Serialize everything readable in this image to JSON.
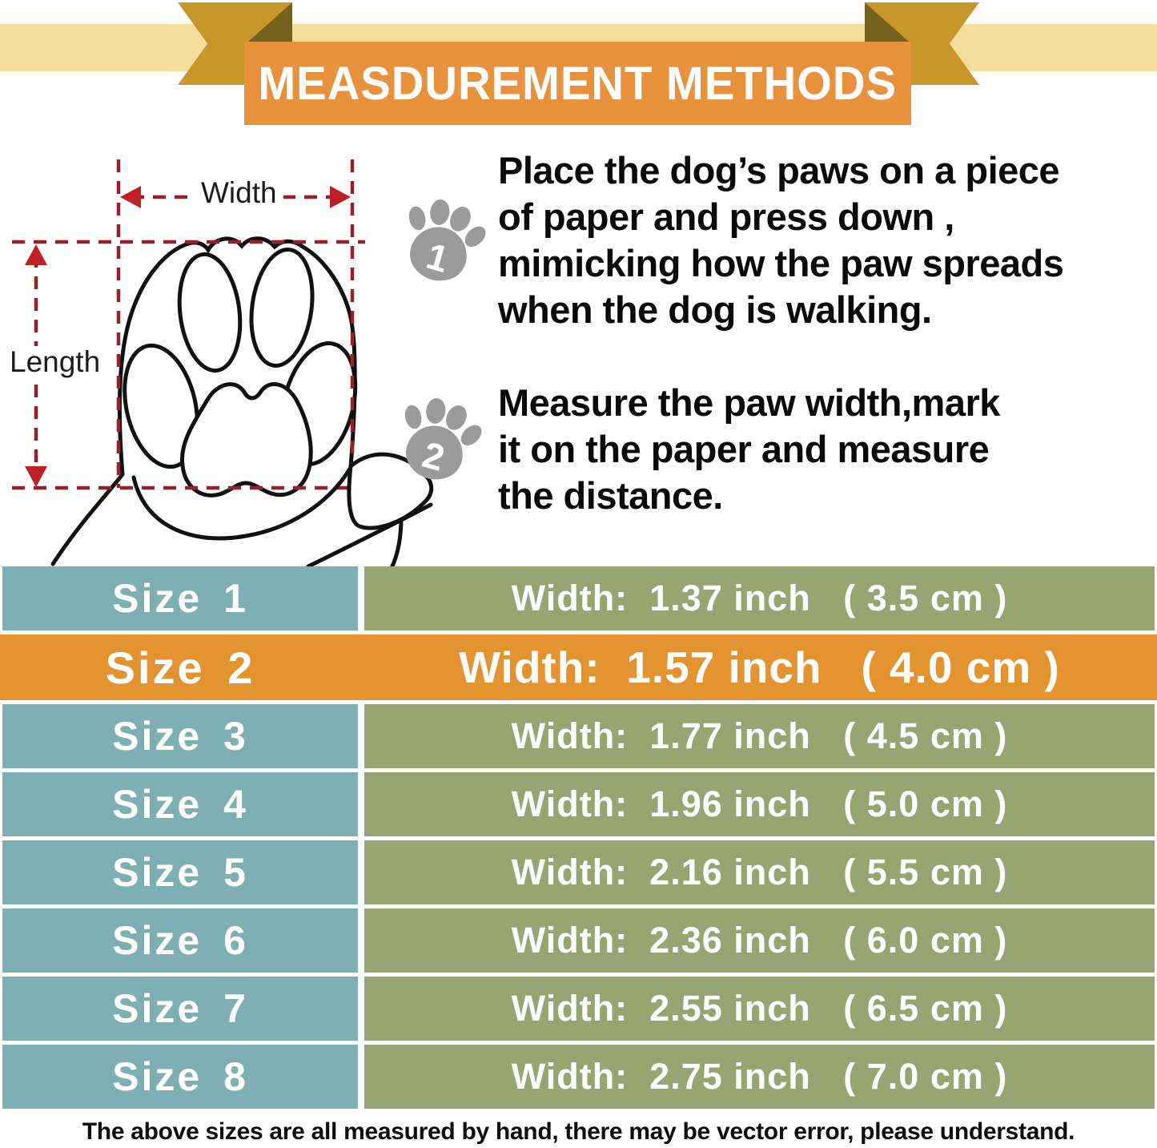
{
  "header": {
    "title": "MEASDUREMENT METHODS"
  },
  "diagram": {
    "width_label": "Width",
    "length_label": "Length"
  },
  "steps": [
    {
      "number": "1",
      "text": "Place the dog’s paws on a piece\nof paper and press down ,\nmimicking how the paw spreads\nwhen the dog is walking."
    },
    {
      "number": "2",
      "text": "Measure the paw width,mark\nit on the paper and measure\nthe distance."
    }
  ],
  "size_table": {
    "rows": [
      {
        "size": "Size 1",
        "width": "Width:  1.37 inch   ( 3.5 cm )",
        "highlight": false
      },
      {
        "size": "Size 2",
        "width": "Width:  1.57 inch   ( 4.0 cm )",
        "highlight": true
      },
      {
        "size": "Size 3",
        "width": "Width:  1.77 inch   ( 4.5 cm )",
        "highlight": false
      },
      {
        "size": "Size 4",
        "width": "Width:  1.96 inch   ( 5.0 cm )",
        "highlight": false
      },
      {
        "size": "Size 5",
        "width": "Width:  2.16 inch   ( 5.5 cm )",
        "highlight": false
      },
      {
        "size": "Size 6",
        "width": "Width:  2.36 inch   ( 6.0 cm )",
        "highlight": false
      },
      {
        "size": "Size 7",
        "width": "Width:  2.55 inch   ( 6.5 cm )",
        "highlight": false
      },
      {
        "size": "Size 8",
        "width": "Width:  2.75 inch   ( 7.0 cm )",
        "highlight": false
      }
    ]
  },
  "footer": {
    "note": "The above sizes are all measured by hand, there may be vector error, please understand."
  },
  "colors": {
    "banner_orange": "#E8923E",
    "ribbon_gold": "#C8972C",
    "ribbon_fold": "#75601C",
    "ribbon_strip": "#F5DD9B",
    "row_teal": "#7EAFB2",
    "row_olive": "#97A572",
    "highlight_orange": "#E39430",
    "dash_red": "#97202A",
    "arrow_red": "#BF2026",
    "paw_gray": "#9B9B9B"
  }
}
